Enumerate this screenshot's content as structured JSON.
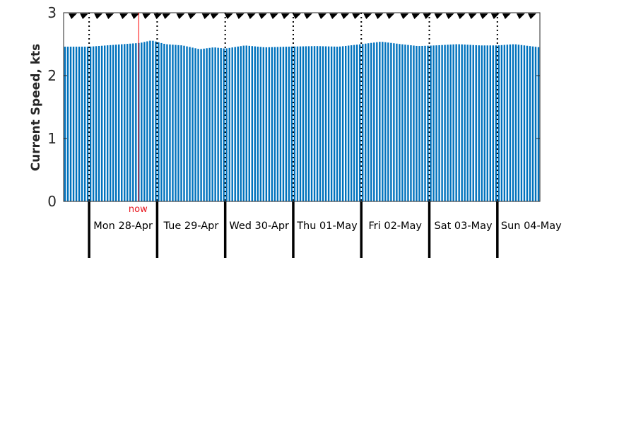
{
  "chart_data": {
    "type": "bar",
    "ylabel": "Current Speed, kts",
    "xlabel": "",
    "title": "",
    "ylim": [
      0,
      3
    ],
    "yticks": [
      0,
      1,
      2,
      3
    ],
    "grid": false,
    "bar_color": "#0072bd",
    "now_color": "#ff0000",
    "now_label": "now",
    "now_time_hours": 17.5,
    "start_time_hours": -9,
    "end_time_hours": 159,
    "sample_interval_hours": 1,
    "days": [
      {
        "label": "Mon 28-Apr",
        "start_hours": 0
      },
      {
        "label": "Tue 29-Apr",
        "start_hours": 24
      },
      {
        "label": "Wed 30-Apr",
        "start_hours": 48
      },
      {
        "label": "Thu 01-May",
        "start_hours": 72
      },
      {
        "label": "Fri 02-May",
        "start_hours": 96
      },
      {
        "label": "Sat 03-May",
        "start_hours": 120
      },
      {
        "label": "Sun 04-May",
        "start_hours": 144
      }
    ],
    "speed_profile": [
      {
        "t": -9,
        "v": 2.46
      },
      {
        "t": 0,
        "v": 2.46
      },
      {
        "t": 6,
        "v": 2.48
      },
      {
        "t": 12,
        "v": 2.5
      },
      {
        "t": 18,
        "v": 2.52
      },
      {
        "t": 22,
        "v": 2.56
      },
      {
        "t": 27,
        "v": 2.5
      },
      {
        "t": 33,
        "v": 2.48
      },
      {
        "t": 39,
        "v": 2.42
      },
      {
        "t": 44,
        "v": 2.45
      },
      {
        "t": 48,
        "v": 2.43
      },
      {
        "t": 55,
        "v": 2.48
      },
      {
        "t": 62,
        "v": 2.45
      },
      {
        "t": 70,
        "v": 2.46
      },
      {
        "t": 80,
        "v": 2.47
      },
      {
        "t": 88,
        "v": 2.46
      },
      {
        "t": 96,
        "v": 2.5
      },
      {
        "t": 103,
        "v": 2.54
      },
      {
        "t": 110,
        "v": 2.5
      },
      {
        "t": 116,
        "v": 2.47
      },
      {
        "t": 122,
        "v": 2.48
      },
      {
        "t": 130,
        "v": 2.5
      },
      {
        "t": 138,
        "v": 2.48
      },
      {
        "t": 144,
        "v": 2.48
      },
      {
        "t": 150,
        "v": 2.5
      },
      {
        "t": 159,
        "v": 2.45
      }
    ],
    "direction_marker_hours": [
      -6,
      -2,
      3,
      7,
      12,
      16,
      20,
      24,
      27,
      32,
      36,
      41,
      44,
      49,
      53,
      57,
      61,
      65,
      69,
      73,
      77,
      82,
      86,
      90,
      94,
      98,
      102,
      106,
      111,
      115,
      119,
      123,
      127,
      131,
      135,
      139,
      143,
      147,
      152,
      156
    ]
  }
}
